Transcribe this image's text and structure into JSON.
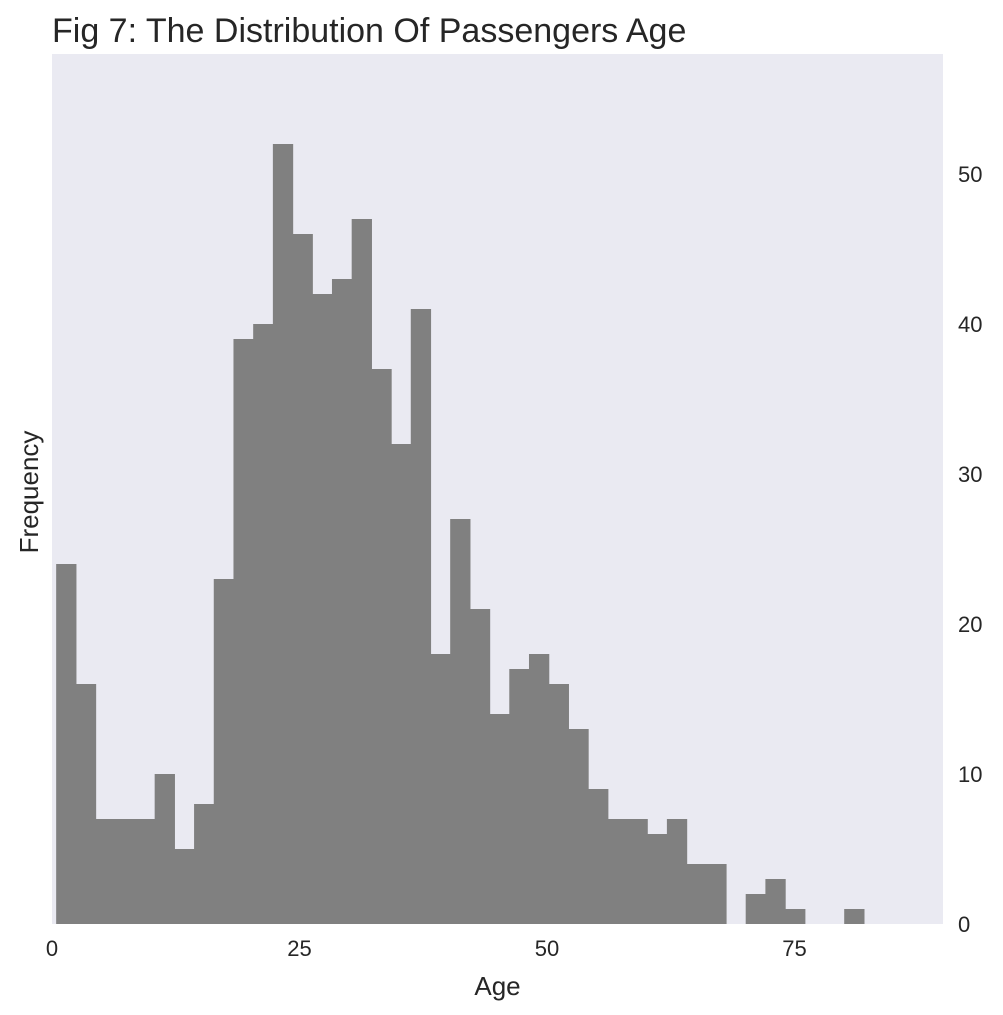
{
  "chart_data": {
    "type": "bar",
    "title": "Fig 7: The Distribution Of Passengers Age",
    "xlabel": "Age",
    "ylabel": "Frequency",
    "xlim": [
      0,
      90
    ],
    "ylim": [
      0,
      58
    ],
    "xticks": [
      0,
      25,
      50,
      75
    ],
    "yticks": [
      0,
      10,
      20,
      30,
      40,
      50
    ],
    "ytick_side": "right",
    "grid": false,
    "bin_start": 0.42,
    "bin_width": 1.99,
    "values": [
      24,
      16,
      7,
      7,
      7,
      10,
      5,
      8,
      23,
      39,
      40,
      52,
      46,
      42,
      43,
      47,
      37,
      32,
      41,
      18,
      27,
      21,
      14,
      17,
      18,
      16,
      13,
      9,
      7,
      7,
      6,
      7,
      4,
      4,
      0,
      2,
      3,
      1,
      0,
      0,
      1
    ],
    "bar_color": "#808080",
    "plot_background": "#eaeaf2"
  }
}
